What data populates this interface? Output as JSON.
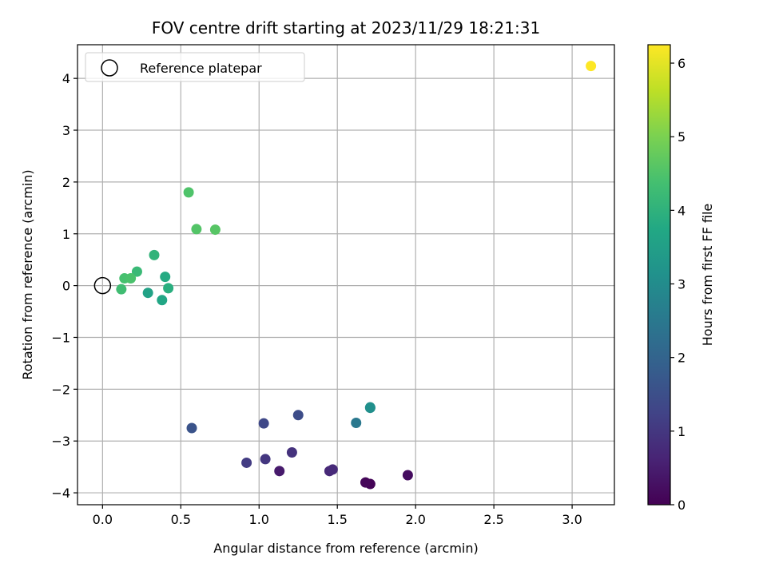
{
  "chart_data": {
    "type": "scatter",
    "title": "FOV centre drift starting at 2023/11/29 18:21:31",
    "xlabel": "Angular distance from reference (arcmin)",
    "ylabel": "Rotation from reference (arcmin)",
    "xlim": [
      -0.16,
      3.27
    ],
    "ylim": [
      -4.23,
      4.65
    ],
    "xticks": [
      "0.0",
      "0.5",
      "1.0",
      "1.5",
      "2.0",
      "2.5",
      "3.0"
    ],
    "yticks": [
      "−4",
      "−3",
      "−2",
      "−1",
      "0",
      "1",
      "2",
      "3",
      "4"
    ],
    "grid": true,
    "legend": {
      "placement": "top-left",
      "entries": [
        "Reference platepar"
      ]
    },
    "reference_point": {
      "x": 0.0,
      "y": 0.0
    },
    "colorbar": {
      "label": "Hours from first FF file",
      "range": [
        0,
        6.25
      ],
      "ticks": [
        "0",
        "1",
        "2",
        "3",
        "4",
        "5",
        "6"
      ],
      "colormap": "viridis"
    },
    "points": [
      {
        "x": 1.71,
        "y": -3.83,
        "hours": 0.05
      },
      {
        "x": 1.68,
        "y": -3.8,
        "hours": 0.1
      },
      {
        "x": 1.95,
        "y": -3.66,
        "hours": 0.2
      },
      {
        "x": 1.13,
        "y": -3.58,
        "hours": 0.45
      },
      {
        "x": 1.45,
        "y": -3.58,
        "hours": 0.7
      },
      {
        "x": 1.47,
        "y": -3.55,
        "hours": 0.75
      },
      {
        "x": 1.21,
        "y": -3.22,
        "hours": 0.9
      },
      {
        "x": 1.04,
        "y": -3.35,
        "hours": 1.0
      },
      {
        "x": 0.92,
        "y": -3.42,
        "hours": 1.1
      },
      {
        "x": 1.03,
        "y": -2.66,
        "hours": 1.35
      },
      {
        "x": 1.25,
        "y": -2.5,
        "hours": 1.45
      },
      {
        "x": 0.57,
        "y": -2.75,
        "hours": 1.6
      },
      {
        "x": 1.62,
        "y": -2.65,
        "hours": 2.5
      },
      {
        "x": 1.71,
        "y": -2.36,
        "hours": 3.0
      },
      {
        "x": 1.71,
        "y": -2.35,
        "hours": 3.1
      },
      {
        "x": 0.29,
        "y": -0.14,
        "hours": 3.6
      },
      {
        "x": 0.38,
        "y": -0.28,
        "hours": 3.7
      },
      {
        "x": 0.4,
        "y": 0.17,
        "hours": 3.8
      },
      {
        "x": 0.42,
        "y": -0.05,
        "hours": 3.9
      },
      {
        "x": 0.33,
        "y": 0.59,
        "hours": 4.05
      },
      {
        "x": 0.22,
        "y": 0.27,
        "hours": 4.2
      },
      {
        "x": 0.12,
        "y": -0.07,
        "hours": 4.3
      },
      {
        "x": 0.14,
        "y": 0.14,
        "hours": 4.4
      },
      {
        "x": 0.18,
        "y": 0.14,
        "hours": 4.45
      },
      {
        "x": 0.55,
        "y": 1.8,
        "hours": 4.5
      },
      {
        "x": 0.6,
        "y": 1.09,
        "hours": 4.55
      },
      {
        "x": 0.72,
        "y": 1.08,
        "hours": 4.6
      },
      {
        "x": 3.12,
        "y": 4.24,
        "hours": 6.25
      }
    ]
  }
}
